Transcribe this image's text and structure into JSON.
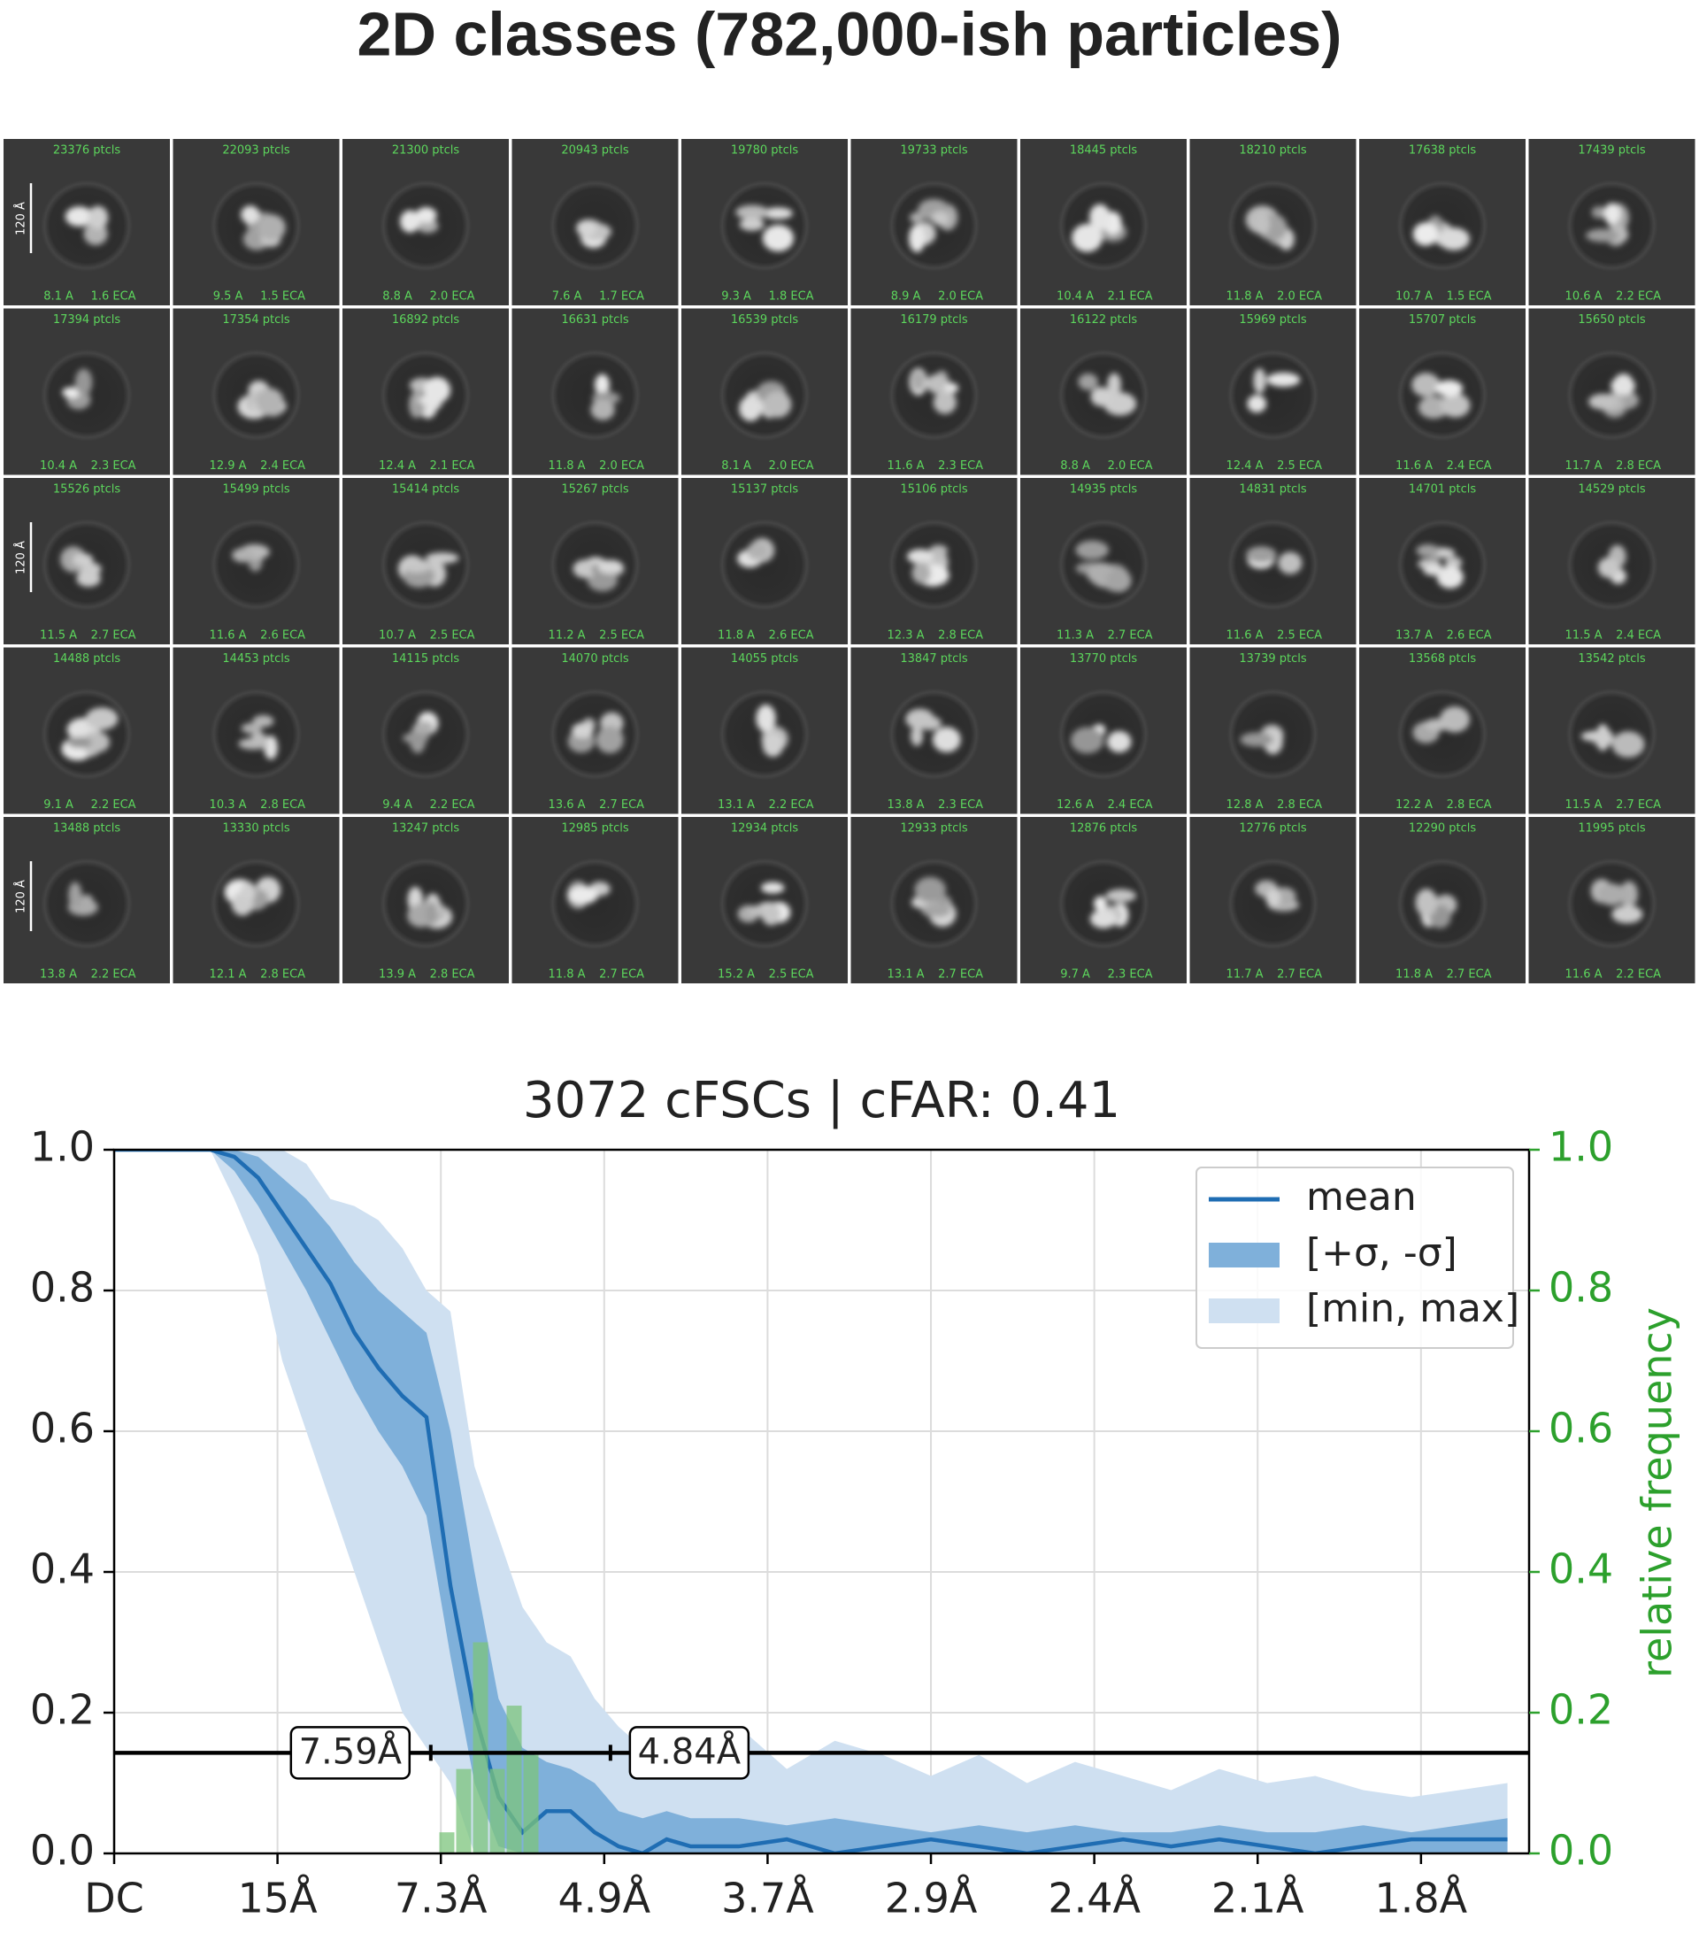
{
  "title": "2D classes (782,000-ish particles)",
  "tiles": [
    {
      "ptcls": "23376 ptcls",
      "res": "8.1 A",
      "eca": "1.6 ECA",
      "scale_bar": "120 Å"
    },
    {
      "ptcls": "22093 ptcls",
      "res": "9.5 A",
      "eca": "1.5 ECA"
    },
    {
      "ptcls": "21300 ptcls",
      "res": "8.8 A",
      "eca": "2.0 ECA"
    },
    {
      "ptcls": "20943 ptcls",
      "res": "7.6 A",
      "eca": "1.7 ECA"
    },
    {
      "ptcls": "19780 ptcls",
      "res": "9.3 A",
      "eca": "1.8 ECA"
    },
    {
      "ptcls": "19733 ptcls",
      "res": "8.9 A",
      "eca": "2.0 ECA"
    },
    {
      "ptcls": "18445 ptcls",
      "res": "10.4 A",
      "eca": "2.1 ECA"
    },
    {
      "ptcls": "18210 ptcls",
      "res": "11.8 A",
      "eca": "2.0 ECA"
    },
    {
      "ptcls": "17638 ptcls",
      "res": "10.7 A",
      "eca": "1.5 ECA"
    },
    {
      "ptcls": "17439 ptcls",
      "res": "10.6 A",
      "eca": "2.2 ECA"
    },
    {
      "ptcls": "17394 ptcls",
      "res": "10.4 A",
      "eca": "2.3 ECA"
    },
    {
      "ptcls": "17354 ptcls",
      "res": "12.9 A",
      "eca": "2.4 ECA"
    },
    {
      "ptcls": "16892 ptcls",
      "res": "12.4 A",
      "eca": "2.1 ECA"
    },
    {
      "ptcls": "16631 ptcls",
      "res": "11.8 A",
      "eca": "2.0 ECA"
    },
    {
      "ptcls": "16539 ptcls",
      "res": "8.1 A",
      "eca": "2.0 ECA"
    },
    {
      "ptcls": "16179 ptcls",
      "res": "11.6 A",
      "eca": "2.3 ECA"
    },
    {
      "ptcls": "16122 ptcls",
      "res": "8.8 A",
      "eca": "2.0 ECA"
    },
    {
      "ptcls": "15969 ptcls",
      "res": "12.4 A",
      "eca": "2.5 ECA"
    },
    {
      "ptcls": "15707 ptcls",
      "res": "11.6 A",
      "eca": "2.4 ECA"
    },
    {
      "ptcls": "15650 ptcls",
      "res": "11.7 A",
      "eca": "2.8 ECA"
    },
    {
      "ptcls": "15526 ptcls",
      "res": "11.5 A",
      "eca": "2.7 ECA",
      "scale_bar": "120 Å"
    },
    {
      "ptcls": "15499 ptcls",
      "res": "11.6 A",
      "eca": "2.6 ECA"
    },
    {
      "ptcls": "15414 ptcls",
      "res": "10.7 A",
      "eca": "2.5 ECA"
    },
    {
      "ptcls": "15267 ptcls",
      "res": "11.2 A",
      "eca": "2.5 ECA"
    },
    {
      "ptcls": "15137 ptcls",
      "res": "11.8 A",
      "eca": "2.6 ECA"
    },
    {
      "ptcls": "15106 ptcls",
      "res": "12.3 A",
      "eca": "2.8 ECA"
    },
    {
      "ptcls": "14935 ptcls",
      "res": "11.3 A",
      "eca": "2.7 ECA"
    },
    {
      "ptcls": "14831 ptcls",
      "res": "11.6 A",
      "eca": "2.5 ECA"
    },
    {
      "ptcls": "14701 ptcls",
      "res": "13.7 A",
      "eca": "2.6 ECA"
    },
    {
      "ptcls": "14529 ptcls",
      "res": "11.5 A",
      "eca": "2.4 ECA"
    },
    {
      "ptcls": "14488 ptcls",
      "res": "9.1 A",
      "eca": "2.2 ECA"
    },
    {
      "ptcls": "14453 ptcls",
      "res": "10.3 A",
      "eca": "2.8 ECA"
    },
    {
      "ptcls": "14115 ptcls",
      "res": "9.4 A",
      "eca": "2.2 ECA"
    },
    {
      "ptcls": "14070 ptcls",
      "res": "13.6 A",
      "eca": "2.7 ECA"
    },
    {
      "ptcls": "14055 ptcls",
      "res": "13.1 A",
      "eca": "2.2 ECA"
    },
    {
      "ptcls": "13847 ptcls",
      "res": "13.8 A",
      "eca": "2.3 ECA"
    },
    {
      "ptcls": "13770 ptcls",
      "res": "12.6 A",
      "eca": "2.4 ECA"
    },
    {
      "ptcls": "13739 ptcls",
      "res": "12.8 A",
      "eca": "2.8 ECA"
    },
    {
      "ptcls": "13568 ptcls",
      "res": "12.2 A",
      "eca": "2.8 ECA"
    },
    {
      "ptcls": "13542 ptcls",
      "res": "11.5 A",
      "eca": "2.7 ECA"
    },
    {
      "ptcls": "13488 ptcls",
      "res": "13.8 A",
      "eca": "2.2 ECA",
      "scale_bar": "120 Å"
    },
    {
      "ptcls": "13330 ptcls",
      "res": "12.1 A",
      "eca": "2.8 ECA"
    },
    {
      "ptcls": "13247 ptcls",
      "res": "13.9 A",
      "eca": "2.8 ECA"
    },
    {
      "ptcls": "12985 ptcls",
      "res": "11.8 A",
      "eca": "2.7 ECA"
    },
    {
      "ptcls": "12934 ptcls",
      "res": "15.2 A",
      "eca": "2.5 ECA"
    },
    {
      "ptcls": "12933 ptcls",
      "res": "13.1 A",
      "eca": "2.7 ECA"
    },
    {
      "ptcls": "12876 ptcls",
      "res": "9.7 A",
      "eca": "2.3 ECA"
    },
    {
      "ptcls": "12776 ptcls",
      "res": "11.7 A",
      "eca": "2.7 ECA"
    },
    {
      "ptcls": "12290 ptcls",
      "res": "11.8 A",
      "eca": "2.7 ECA"
    },
    {
      "ptcls": "11995 ptcls",
      "res": "11.6 A",
      "eca": "2.2 ECA"
    }
  ],
  "chart_data": {
    "type": "line",
    "title": "3072 cFSCs | cFAR: 0.41",
    "x": [
      0,
      0.01,
      0.02,
      0.03,
      0.04,
      0.05,
      0.06,
      0.07,
      0.08,
      0.09,
      0.1,
      0.11,
      0.12,
      0.13,
      0.14,
      0.15,
      0.16,
      0.17,
      0.18,
      0.19,
      0.2,
      0.21,
      0.22,
      0.23,
      0.24,
      0.26,
      0.28,
      0.3,
      0.32,
      0.34,
      0.36,
      0.38,
      0.4,
      0.42,
      0.44,
      0.46,
      0.48,
      0.5,
      0.52,
      0.54,
      0.56,
      0.58
    ],
    "xlim": [
      0,
      0.589
    ],
    "xticks": [
      {
        "value": 0,
        "label": "DC"
      },
      {
        "value": 0.068,
        "label": "15Å"
      },
      {
        "value": 0.136,
        "label": "7.3Å"
      },
      {
        "value": 0.204,
        "label": "4.9Å"
      },
      {
        "value": 0.272,
        "label": "3.7Å"
      },
      {
        "value": 0.34,
        "label": "2.9Å"
      },
      {
        "value": 0.408,
        "label": "2.4Å"
      },
      {
        "value": 0.476,
        "label": "2.1Å"
      },
      {
        "value": 0.544,
        "label": "1.8Å"
      }
    ],
    "ylim": [
      0,
      1
    ],
    "yticks": [
      {
        "value": 0,
        "label": "0.0"
      },
      0.2,
      0.4,
      0.6,
      0.8,
      {
        "value": 1,
        "label": "1.0"
      }
    ],
    "y2lim": [
      0,
      1
    ],
    "y2ticks": [
      {
        "value": 0,
        "label": "0.0"
      },
      0.2,
      0.4,
      0.6,
      0.8,
      {
        "value": 1,
        "label": "1.0"
      }
    ],
    "y2label": "relative frequency",
    "y2color": "#2ca02c",
    "grid": true,
    "legend": "upper right",
    "series": [
      {
        "name": "mean",
        "color": "#1f6db3",
        "values": [
          1,
          1,
          1,
          1,
          1,
          0.99,
          0.96,
          0.91,
          0.86,
          0.81,
          0.74,
          0.69,
          0.65,
          0.62,
          0.38,
          0.2,
          0.08,
          0.03,
          0.06,
          0.06,
          0.03,
          0.01,
          0,
          0.02,
          0.01,
          0.01,
          0.02,
          0,
          0.01,
          0.02,
          0.01,
          0,
          0.01,
          0.02,
          0.01,
          0.02,
          0.01,
          0,
          0.01,
          0.02,
          0.02,
          0.02
        ]
      },
      {
        "name": "[+σ, -σ]",
        "color": "#7fb0da",
        "upper": [
          1,
          1,
          1,
          1,
          1,
          1,
          0.99,
          0.96,
          0.93,
          0.89,
          0.84,
          0.8,
          0.77,
          0.74,
          0.6,
          0.4,
          0.22,
          0.15,
          0.13,
          0.12,
          0.1,
          0.06,
          0.05,
          0.06,
          0.05,
          0.05,
          0.04,
          0.05,
          0.04,
          0.03,
          0.04,
          0.03,
          0.04,
          0.03,
          0.03,
          0.04,
          0.03,
          0.03,
          0.04,
          0.03,
          0.04,
          0.05
        ],
        "lower": [
          1,
          1,
          1,
          1,
          1,
          0.97,
          0.92,
          0.86,
          0.8,
          0.73,
          0.66,
          0.6,
          0.55,
          0.48,
          0.28,
          0.1,
          0.01,
          0,
          0,
          0,
          0,
          0,
          0,
          0,
          0,
          0,
          0,
          0,
          0,
          0,
          0,
          0,
          0,
          0,
          0,
          0,
          0,
          0,
          0,
          0,
          0,
          0
        ]
      },
      {
        "name": "[min, max]",
        "color": "#cfe0f1",
        "upper": [
          1,
          1,
          1,
          1,
          1,
          1,
          1,
          1,
          0.98,
          0.93,
          0.92,
          0.9,
          0.86,
          0.8,
          0.77,
          0.55,
          0.45,
          0.35,
          0.3,
          0.28,
          0.22,
          0.18,
          0.15,
          0.16,
          0.13,
          0.18,
          0.12,
          0.16,
          0.14,
          0.11,
          0.14,
          0.1,
          0.13,
          0.11,
          0.09,
          0.12,
          0.1,
          0.11,
          0.09,
          0.08,
          0.09,
          0.1
        ],
        "lower": [
          1,
          1,
          1,
          1,
          1,
          0.93,
          0.85,
          0.7,
          0.6,
          0.5,
          0.4,
          0.3,
          0.2,
          0.15,
          0.1,
          0,
          0,
          0,
          0,
          0,
          0,
          0,
          0,
          0,
          0,
          0,
          0,
          0,
          0,
          0,
          0,
          0,
          0,
          0,
          0,
          0,
          0,
          0,
          0,
          0,
          0,
          0
        ]
      }
    ],
    "histogram": {
      "axis": "y2",
      "color": "#7cc47c",
      "bins": [
        0.135,
        0.142,
        0.149,
        0.156,
        0.163,
        0.17,
        0.177
      ],
      "counts": [
        0.03,
        0.12,
        0.3,
        0.12,
        0.21,
        0.14
      ]
    },
    "threshold": 0.143,
    "annotations": [
      {
        "label": "7.59Å",
        "x": 0.1318
      },
      {
        "label": "4.84Å",
        "x": 0.2066
      }
    ]
  }
}
